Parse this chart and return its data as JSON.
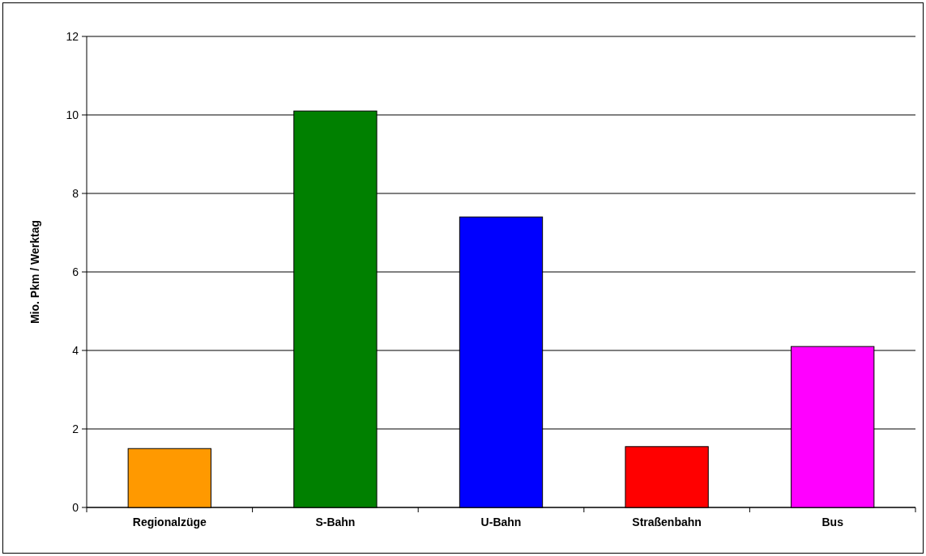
{
  "chart_data": {
    "type": "bar",
    "ylabel": "Mio. Pkm / Werktag",
    "categories": [
      "Regionalzüge",
      "S-Bahn",
      "U-Bahn",
      "Straßenbahn",
      "Bus"
    ],
    "values": [
      1.5,
      10.1,
      7.4,
      1.55,
      4.1
    ],
    "colors": [
      "#ff9900",
      "#008000",
      "#0000ff",
      "#ff0000",
      "#ff00ff"
    ],
    "ylim": [
      0,
      12
    ],
    "yticks": [
      0,
      2,
      4,
      6,
      8,
      10,
      12
    ],
    "grid": "y"
  }
}
